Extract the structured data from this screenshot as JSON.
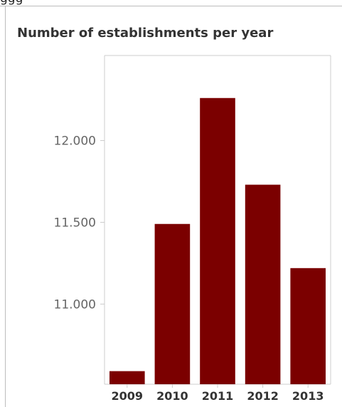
{
  "header": {
    "fragment": "ggg"
  },
  "chart_data": {
    "type": "bar",
    "title": "Number of establishments per year",
    "xlabel": "",
    "ylabel": "",
    "categories": [
      "2009",
      "2010",
      "2011",
      "2012",
      "2013"
    ],
    "values": [
      10590,
      11490,
      12260,
      11730,
      11220
    ],
    "ylim": [
      10510,
      12520
    ],
    "yticks": [
      11000,
      11500,
      12000
    ],
    "ytick_labels": [
      "11.000",
      "11.500",
      "12.000"
    ],
    "grid": false,
    "legend": "none",
    "colors": {
      "bar": "#7b0000",
      "axis": "#cccccc",
      "tick_text": "#666666",
      "category_text": "#333333"
    }
  }
}
